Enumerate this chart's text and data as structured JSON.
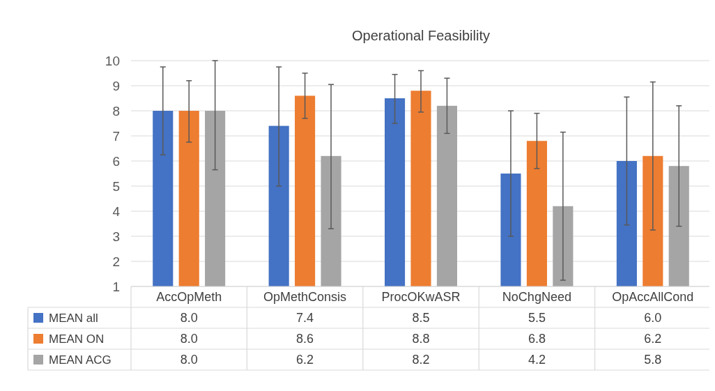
{
  "chart_data": {
    "type": "bar",
    "title": "Operational Feasibility",
    "categories": [
      "AccOpMeth",
      "OpMethConsis",
      "ProcOKwASR",
      "NoChgNeed",
      "OpAccAllCond"
    ],
    "series": [
      {
        "name": "MEAN all",
        "color": "#4472c4",
        "values": [
          8.0,
          7.4,
          8.5,
          5.5,
          6.0
        ],
        "value_labels": [
          "8.0",
          "7.4",
          "8.5",
          "5.5",
          "6.0"
        ],
        "errors": [
          [
            6.25,
            9.75
          ],
          [
            5.0,
            9.75
          ],
          [
            7.5,
            9.45
          ],
          [
            3.0,
            8.0
          ],
          [
            3.45,
            8.55
          ]
        ]
      },
      {
        "name": "MEAN ON",
        "color": "#ed7d31",
        "values": [
          8.0,
          8.6,
          8.8,
          6.8,
          6.2
        ],
        "value_labels": [
          "8.0",
          "8.6",
          "8.8",
          "6.8",
          "6.2"
        ],
        "errors": [
          [
            6.75,
            9.2
          ],
          [
            7.7,
            9.5
          ],
          [
            7.95,
            9.6
          ],
          [
            5.7,
            7.9
          ],
          [
            3.25,
            9.15
          ]
        ]
      },
      {
        "name": "MEAN ACG",
        "color": "#a5a5a5",
        "values": [
          8.0,
          6.2,
          8.2,
          4.2,
          5.8
        ],
        "value_labels": [
          "8.0",
          "6.2",
          "8.2",
          "4.2",
          "5.8"
        ],
        "errors": [
          [
            5.65,
            10
          ],
          [
            3.3,
            9.05
          ],
          [
            7.1,
            9.3
          ],
          [
            1.25,
            7.15
          ],
          [
            3.4,
            8.2
          ]
        ]
      }
    ],
    "ylim": [
      1,
      10
    ],
    "yticks": [
      1,
      2,
      3,
      4,
      5,
      6,
      7,
      8,
      9,
      10
    ],
    "grid": "y",
    "legend": "bottom"
  }
}
